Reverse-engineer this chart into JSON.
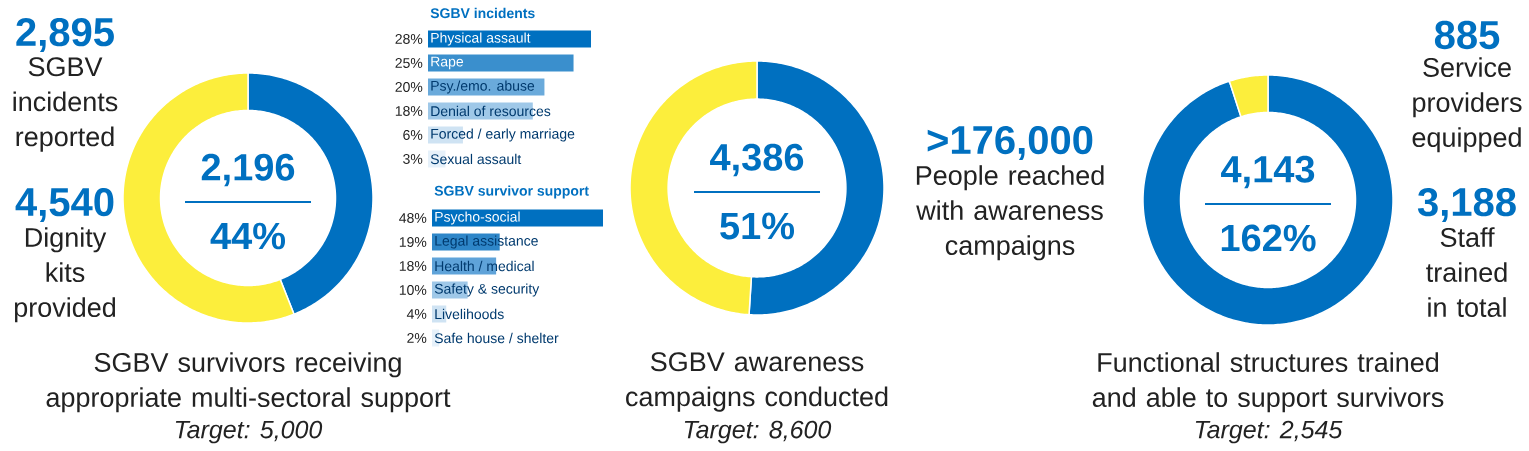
{
  "chart_data": [
    {
      "type": "other",
      "annotations": [
        "2,895",
        "SGBV incidents reported",
        "4,540",
        "Dignity kits provided"
      ]
    },
    {
      "type": "donut",
      "title": "SGBV survivors receiving appropriate multi-sectoral support",
      "subtitle": "Target: 5,000",
      "categories": [
        null,
        null
      ],
      "values": [
        44,
        56
      ],
      "colors": [
        "#0070c0",
        "#fcee3c"
      ],
      "annotations": [
        "2,196",
        "44%"
      ],
      "legend": false
    },
    {
      "type": "bar",
      "orientation": "horizontal",
      "title": "SGBV incidents",
      "categories": [
        "Physical assault",
        "Rape",
        "Psy./emo. abuse",
        "Denial of resources",
        "Forced / early marriage",
        "Sexual assault"
      ],
      "values": [
        28,
        25,
        20,
        18,
        6,
        3
      ],
      "value_labels": [
        "28%",
        "25%",
        "20%",
        "18%",
        "6%",
        "3%"
      ],
      "colors": [
        "#0070c0",
        "#3a8fcd",
        "#6aaadb",
        "#9fc8e8",
        "#cfe3f3",
        "#e6f1fa"
      ]
    },
    {
      "type": "bar",
      "orientation": "horizontal",
      "title": "SGBV survivor support",
      "categories": [
        "Psycho-social",
        "Legal assistance",
        "Health / medical",
        "Safety & security",
        "Livelihoods",
        "Safe house / shelter"
      ],
      "values": [
        48,
        19,
        18,
        10,
        4,
        2
      ],
      "value_labels": [
        "48%",
        "19%",
        "18%",
        "10%",
        "4%",
        "2%"
      ],
      "colors": [
        "#0070c0",
        "#2e86c8",
        "#5fa3d9",
        "#9fc8e8",
        "#cfe3f3",
        "#e6f1fa"
      ]
    },
    {
      "type": "donut",
      "title": "SGBV awareness campaigns conducted",
      "subtitle": "Target: 8,600",
      "categories": [
        null,
        null
      ],
      "values": [
        51,
        49
      ],
      "colors": [
        "#0070c0",
        "#fcee3c"
      ],
      "annotations": [
        "4,386",
        "51%"
      ],
      "legend": false
    },
    {
      "type": "other",
      "annotations": [
        ">176,000",
        "People reached with awareness campaigns"
      ]
    },
    {
      "type": "donut",
      "title": "Functional structures trained and able to support survivors",
      "subtitle": "Target: 2,545",
      "categories": [
        null,
        null
      ],
      "values": [
        95,
        5
      ],
      "colors": [
        "#0070c0",
        "#fcee3c"
      ],
      "annotations": [
        "4,143",
        "162%"
      ],
      "legend": false
    },
    {
      "type": "other",
      "annotations": [
        "885",
        "Service providers equipped",
        "3,188",
        "Staff trained in total"
      ]
    }
  ]
}
